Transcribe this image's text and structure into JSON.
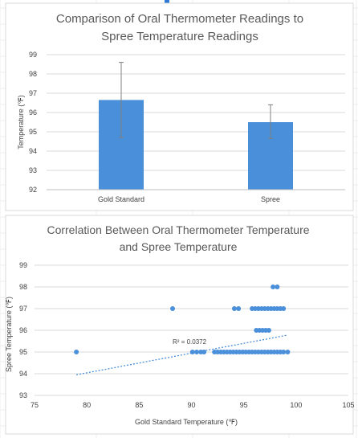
{
  "chart_data": [
    {
      "type": "bar",
      "title_lines": [
        "Comparison of Oral Thermometer Readings to",
        "Spree Temperature Readings"
      ],
      "categories": [
        "Gold Standard",
        "Spree"
      ],
      "values": [
        96.65,
        95.5
      ],
      "error_low": [
        94.7,
        94.65
      ],
      "error_high": [
        98.6,
        96.4
      ],
      "ylabel": "Temperature (℉)",
      "xlabel": "",
      "ylim": [
        92,
        99
      ],
      "yticks": [
        "99",
        "98",
        "97",
        "96",
        "95",
        "94",
        "93",
        "92"
      ],
      "grid": true,
      "bar_color": "#4a8fd9"
    },
    {
      "type": "scatter",
      "title_lines": [
        "Correlation Between Oral Thermometer Temperature",
        "and Spree Temperature"
      ],
      "xlabel": "Gold Standard Temperature (℉)",
      "ylabel": "Spree Temperature (℉)",
      "xlim": [
        75,
        105
      ],
      "ylim": [
        93,
        99
      ],
      "xticks": [
        "75",
        "80",
        "85",
        "90",
        "95",
        "100",
        "105"
      ],
      "yticks": [
        "99",
        "98",
        "97",
        "96",
        "95",
        "94",
        "93"
      ],
      "grid": true,
      "point_color": "#4a8fd9",
      "trendline": {
        "r2_label": "R² = 0.0372",
        "x": [
          79,
          99.2
        ],
        "y": [
          93.95,
          95.78
        ]
      },
      "points": [
        [
          79,
          95
        ],
        [
          88.2,
          97
        ],
        [
          90.1,
          95
        ],
        [
          90.5,
          95
        ],
        [
          90.9,
          95
        ],
        [
          91.2,
          95
        ],
        [
          92.2,
          95
        ],
        [
          92.5,
          95
        ],
        [
          92.8,
          95
        ],
        [
          93.1,
          95
        ],
        [
          93.4,
          95
        ],
        [
          93.7,
          95
        ],
        [
          94.0,
          95
        ],
        [
          94.3,
          95
        ],
        [
          94.6,
          95
        ],
        [
          94.9,
          95
        ],
        [
          95.2,
          95
        ],
        [
          95.5,
          95
        ],
        [
          95.8,
          95
        ],
        [
          96.1,
          95
        ],
        [
          96.4,
          95
        ],
        [
          96.7,
          95
        ],
        [
          97.0,
          95
        ],
        [
          97.3,
          95
        ],
        [
          97.6,
          95
        ],
        [
          97.9,
          95
        ],
        [
          98.2,
          95
        ],
        [
          98.5,
          95
        ],
        [
          98.8,
          95
        ],
        [
          99.2,
          95
        ],
        [
          94.1,
          97
        ],
        [
          94.5,
          97
        ],
        [
          95.8,
          97
        ],
        [
          96.1,
          97
        ],
        [
          96.4,
          97
        ],
        [
          96.7,
          97
        ],
        [
          97.0,
          97
        ],
        [
          97.3,
          97
        ],
        [
          97.6,
          97
        ],
        [
          97.9,
          97
        ],
        [
          98.2,
          97
        ],
        [
          98.5,
          97
        ],
        [
          98.8,
          97
        ],
        [
          96.2,
          96
        ],
        [
          96.5,
          96
        ],
        [
          96.8,
          96
        ],
        [
          97.1,
          96
        ],
        [
          97.4,
          96
        ],
        [
          97.8,
          98
        ],
        [
          98.2,
          98
        ]
      ]
    }
  ]
}
